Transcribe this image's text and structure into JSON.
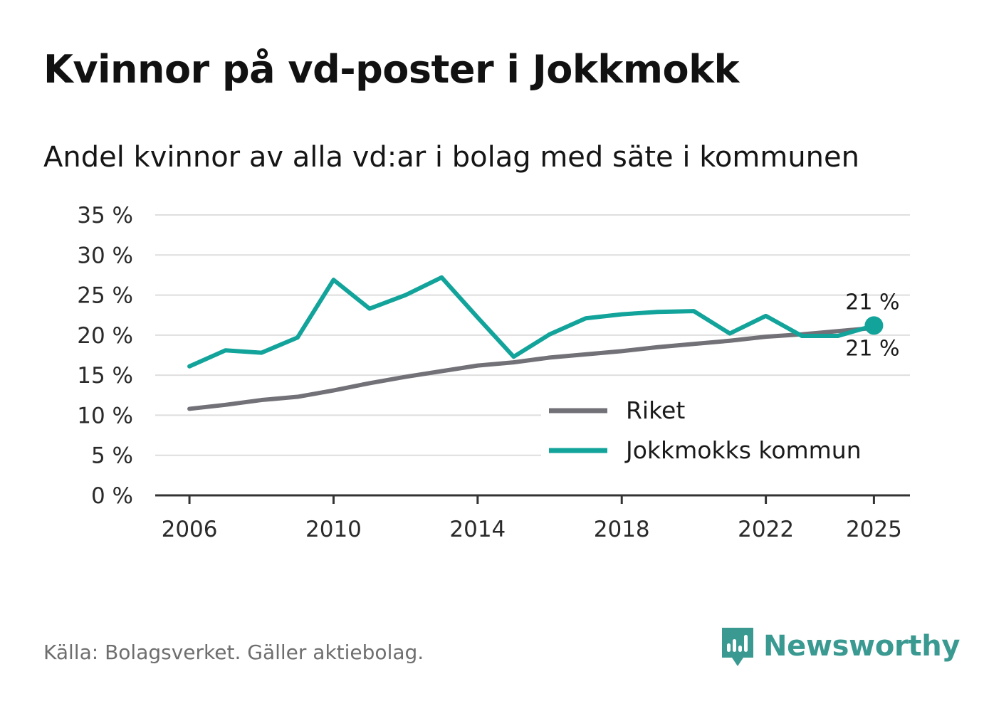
{
  "header": {
    "title": "Kvinnor på vd-poster i Jokkmokk",
    "subtitle": "Andel kvinnor av alla vd:ar i bolag med säte i kommunen"
  },
  "footer": {
    "source": "Källa: Bolagsverket. Gäller aktiebolag.",
    "brand": "Newsworthy",
    "brand_color": "#3a9a92"
  },
  "chart_data": {
    "type": "line",
    "x": [
      2006,
      2007,
      2008,
      2009,
      2010,
      2011,
      2012,
      2013,
      2014,
      2015,
      2016,
      2017,
      2018,
      2019,
      2020,
      2021,
      2022,
      2023,
      2024,
      2025
    ],
    "series": [
      {
        "name": "Riket",
        "color": "#737178",
        "values": [
          10.8,
          11.3,
          11.9,
          12.3,
          13.1,
          14.0,
          14.8,
          15.5,
          16.2,
          16.6,
          17.2,
          17.6,
          18.0,
          18.5,
          18.9,
          19.3,
          19.8,
          20.1,
          20.5,
          20.9
        ],
        "end_label": "21 %"
      },
      {
        "name": "Jokkmokks kommun",
        "color": "#12a39b",
        "values": [
          16.1,
          18.1,
          17.8,
          19.7,
          26.9,
          23.3,
          25.0,
          27.2,
          22.2,
          17.3,
          20.1,
          22.1,
          22.6,
          22.9,
          23.0,
          20.2,
          22.4,
          19.9,
          19.9,
          21.2
        ],
        "end_label": "21 %"
      }
    ],
    "ylim": [
      0,
      35
    ],
    "yticks": [
      0,
      5,
      10,
      15,
      20,
      25,
      30,
      35
    ],
    "ytick_labels": [
      "0 %",
      "5 %",
      "10 %",
      "15 %",
      "20 %",
      "25 %",
      "30 %",
      "35 %"
    ],
    "xticks": [
      2006,
      2010,
      2014,
      2018,
      2022,
      2025
    ],
    "xtick_labels": [
      "2006",
      "2010",
      "2014",
      "2018",
      "2022",
      "2025"
    ],
    "xlim": [
      2005.05,
      2026
    ],
    "grid": true,
    "legend_position": "bottom-right",
    "xlabel": "",
    "ylabel": ""
  }
}
